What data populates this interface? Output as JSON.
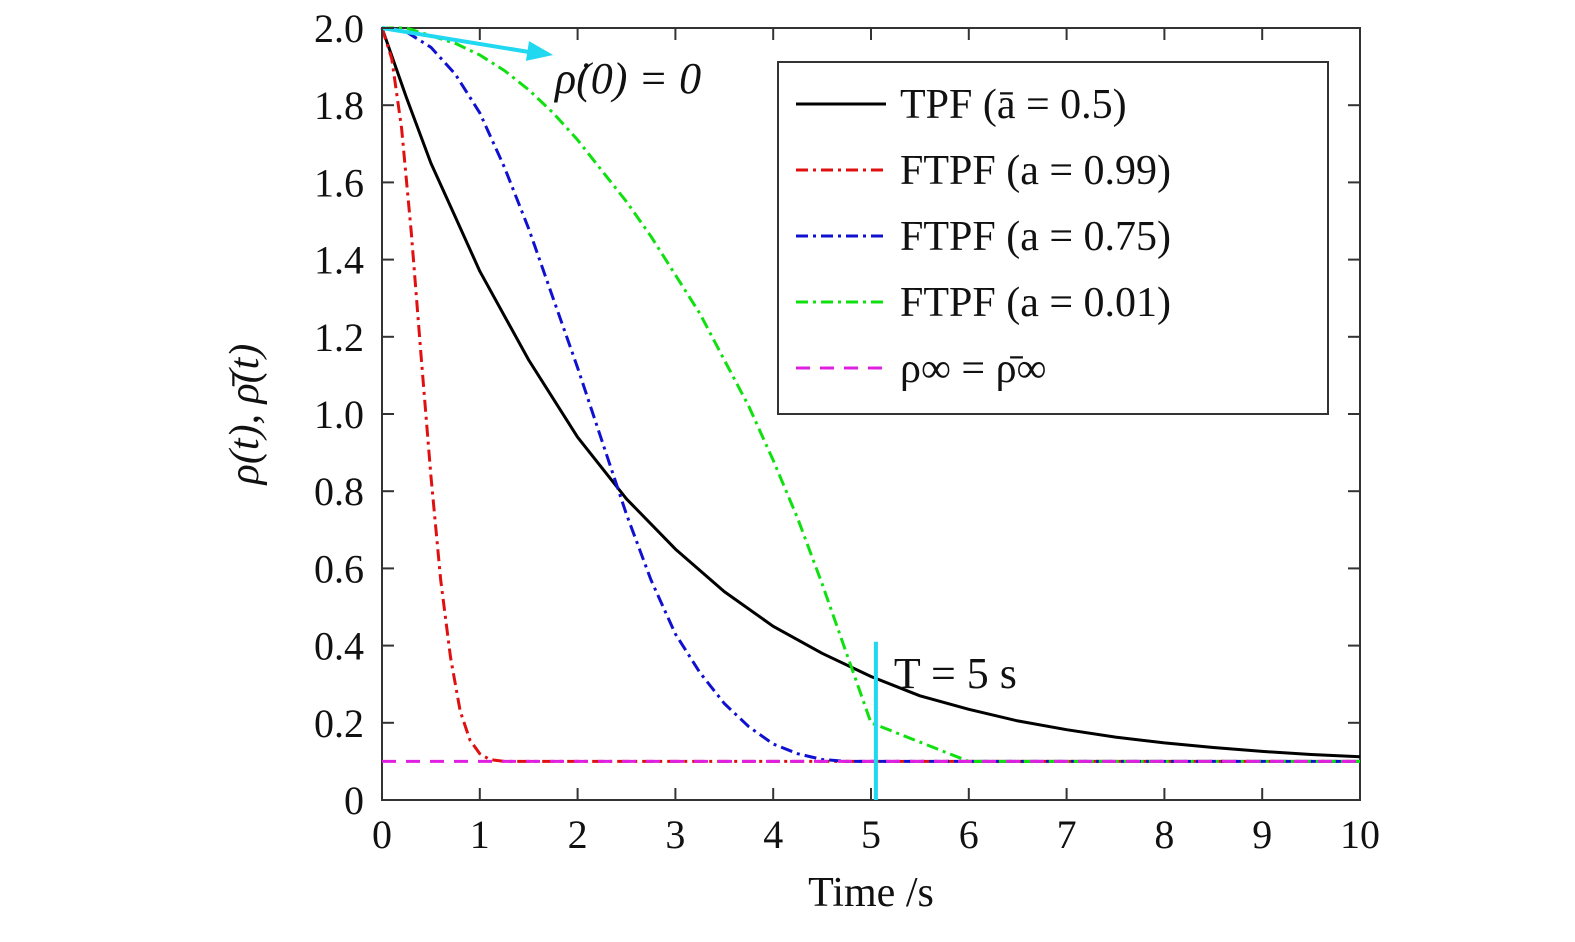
{
  "chart_data": {
    "type": "line",
    "title": "",
    "xlabel": "Time /s",
    "ylabel": "ρ(t), ρ̄(t)",
    "xlim": [
      0,
      10
    ],
    "ylim": [
      0,
      2.0
    ],
    "x_ticks": [
      0,
      1,
      2,
      3,
      4,
      5,
      6,
      7,
      8,
      9,
      10
    ],
    "x_tick_labels": [
      "0",
      "1",
      "2",
      "3",
      "4",
      "5",
      "6",
      "7",
      "8",
      "9",
      "10"
    ],
    "y_ticks": [
      0,
      0.2,
      0.4,
      0.6,
      0.8,
      1.0,
      1.2,
      1.4,
      1.6,
      1.8,
      2.0
    ],
    "y_tick_labels": [
      "0",
      "0.2",
      "0.4",
      "0.6",
      "0.8",
      "1.0",
      "1.2",
      "1.4",
      "1.6",
      "1.8",
      "2.0"
    ],
    "grid": false,
    "legend_position": "top-right",
    "series": [
      {
        "name": "TPF (ā = 0.5)",
        "color": "#000000",
        "style": "solid",
        "x": [
          0,
          0.25,
          0.5,
          0.75,
          1,
          1.5,
          2,
          2.5,
          3,
          3.5,
          4,
          4.5,
          5,
          5.5,
          6,
          6.5,
          7,
          7.5,
          8,
          8.5,
          9,
          9.5,
          10
        ],
        "y": [
          2.0,
          1.82,
          1.65,
          1.51,
          1.37,
          1.14,
          0.94,
          0.78,
          0.65,
          0.54,
          0.45,
          0.38,
          0.32,
          0.27,
          0.235,
          0.205,
          0.182,
          0.163,
          0.148,
          0.136,
          0.126,
          0.118,
          0.112
        ]
      },
      {
        "name": "FTPF (a = 0.99)",
        "color": "#e01010",
        "style": "dash-dot",
        "x": [
          0,
          0.1,
          0.2,
          0.3,
          0.4,
          0.5,
          0.6,
          0.7,
          0.8,
          0.9,
          1.0,
          1.1,
          1.25,
          1.5,
          2,
          3,
          4,
          5,
          6,
          7,
          8,
          9,
          10
        ],
        "y": [
          2.0,
          1.92,
          1.74,
          1.47,
          1.15,
          0.84,
          0.57,
          0.37,
          0.23,
          0.155,
          0.12,
          0.105,
          0.1,
          0.1,
          0.1,
          0.1,
          0.1,
          0.1,
          0.1,
          0.1,
          0.1,
          0.1,
          0.1
        ]
      },
      {
        "name": "FTPF (a = 0.75)",
        "color": "#1010d0",
        "style": "dash-dot",
        "x": [
          0,
          0.25,
          0.5,
          0.75,
          1,
          1.25,
          1.5,
          1.75,
          2,
          2.25,
          2.5,
          2.75,
          3,
          3.25,
          3.5,
          3.75,
          4,
          4.25,
          4.5,
          4.75,
          5,
          6,
          7,
          8,
          9,
          10
        ],
        "y": [
          2.0,
          1.99,
          1.95,
          1.88,
          1.78,
          1.64,
          1.48,
          1.3,
          1.12,
          0.93,
          0.74,
          0.57,
          0.43,
          0.33,
          0.25,
          0.19,
          0.145,
          0.12,
          0.105,
          0.1,
          0.1,
          0.1,
          0.1,
          0.1,
          0.1,
          0.1
        ]
      },
      {
        "name": "FTPF (a = 0.01)",
        "color": "#10e010",
        "style": "dash-dot",
        "x": [
          0,
          0.25,
          0.5,
          0.75,
          1,
          1.25,
          1.5,
          1.75,
          2,
          2.25,
          2.5,
          2.75,
          3,
          3.25,
          3.5,
          3.75,
          4,
          4.25,
          4.5,
          4.75,
          5,
          6,
          7,
          8,
          9,
          10
        ],
        "y": [
          2.0,
          2.0,
          1.98,
          1.96,
          1.93,
          1.89,
          1.84,
          1.78,
          1.71,
          1.63,
          1.55,
          1.46,
          1.36,
          1.26,
          1.14,
          1.02,
          0.88,
          0.73,
          0.56,
          0.38,
          0.2,
          0.1,
          0.1,
          0.1,
          0.1,
          0.1
        ]
      },
      {
        "name": "ρ∞ = ρ̄∞",
        "color": "#e020e0",
        "style": "dashed",
        "x": [
          0,
          10
        ],
        "y": [
          0.1,
          0.1
        ]
      }
    ],
    "annotations": [
      {
        "text": "ρ̇(0) = 0",
        "kind": "tangent-arrow",
        "color": "#20d8f0",
        "from": [
          0,
          2.0
        ],
        "to": [
          1.75,
          1.93
        ]
      },
      {
        "text": "T = 5 s",
        "kind": "vertical-marker",
        "color": "#20d8f0",
        "x": 5.05,
        "y_range": [
          0,
          0.41
        ]
      }
    ]
  }
}
